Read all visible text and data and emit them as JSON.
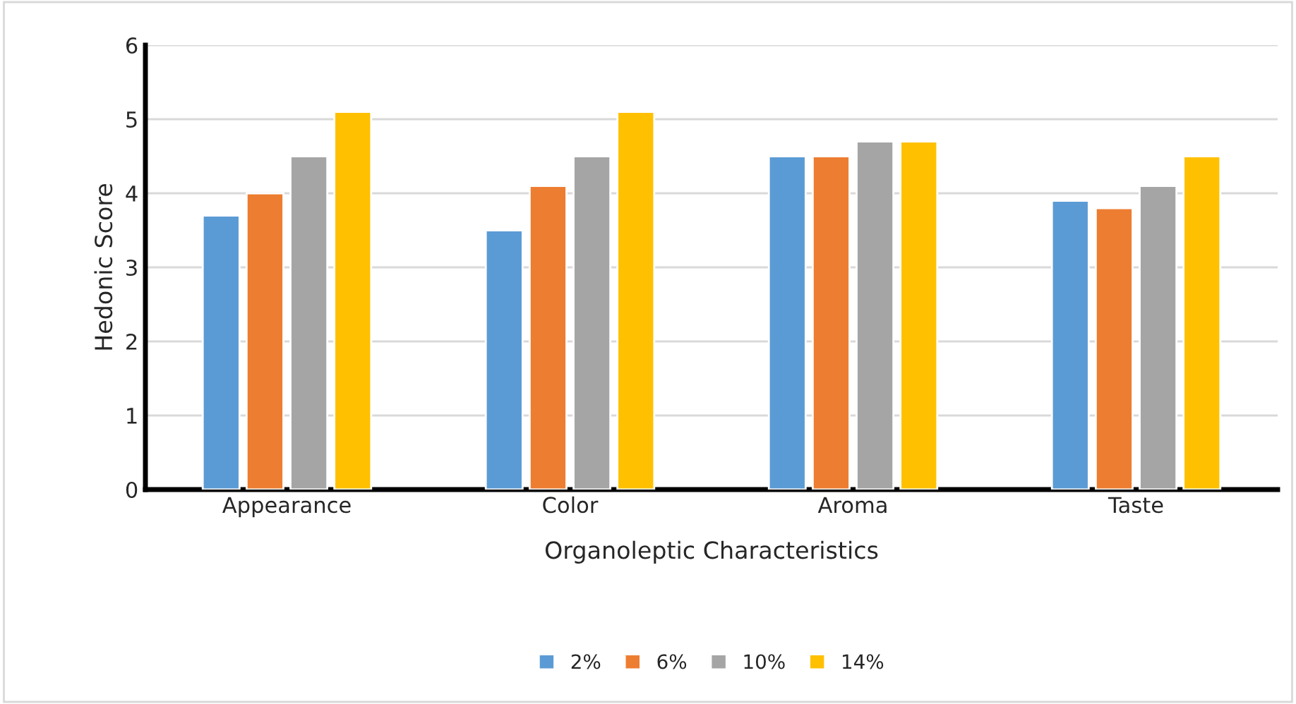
{
  "chart_data": {
    "type": "bar",
    "xlabel": "Organoleptic Characteristics",
    "ylabel": "Hedonic Score",
    "categories": [
      "Appearance",
      "Color",
      "Aroma",
      "Taste"
    ],
    "series": [
      {
        "name": "2%",
        "color": "#5b9bd5",
        "values": [
          3.7,
          3.5,
          4.5,
          3.9
        ]
      },
      {
        "name": "6%",
        "color": "#ed7d31",
        "values": [
          4.0,
          4.1,
          4.5,
          3.8
        ]
      },
      {
        "name": "10%",
        "color": "#a5a5a5",
        "values": [
          4.5,
          4.5,
          4.7,
          4.1
        ]
      },
      {
        "name": "14%",
        "color": "#ffc000",
        "values": [
          5.1,
          5.1,
          4.7,
          4.5
        ]
      }
    ],
    "ylim": [
      0,
      6
    ],
    "yticks": [
      0,
      1,
      2,
      3,
      4,
      5,
      6
    ],
    "grid": "y",
    "legend": "bottom"
  }
}
